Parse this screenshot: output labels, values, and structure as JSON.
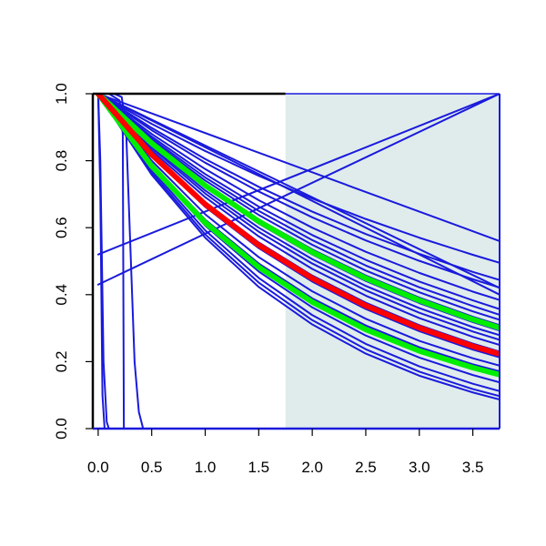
{
  "chart_data": {
    "type": "line",
    "title": "",
    "xlabel": "",
    "ylabel": "",
    "xlim": [
      -0.05,
      3.75
    ],
    "ylim": [
      0.0,
      1.0
    ],
    "x_ticks": [
      0.0,
      0.5,
      1.0,
      1.5,
      2.0,
      2.5,
      3.0,
      3.5
    ],
    "x_tick_labels": [
      "0.0",
      "0.5",
      "1.0",
      "1.5",
      "2.0",
      "2.5",
      "3.0",
      "3.5"
    ],
    "y_ticks": [
      0.0,
      0.2,
      0.4,
      0.6,
      0.8,
      1.0
    ],
    "y_tick_labels": [
      "0.0",
      "0.2",
      "0.4",
      "0.6",
      "0.8",
      "1.0"
    ],
    "grid": false,
    "legend": "none",
    "shaded_region": {
      "x_start": 1.75,
      "x_end": 3.75,
      "color": "#e0ecec"
    },
    "colors": {
      "background_curves": "#1a1adc",
      "central": "#ff0000",
      "bounds": "#00ee00"
    },
    "series": [
      {
        "role": "background",
        "x": [
          0,
          0.02,
          0.04,
          0.06
        ],
        "y": [
          1.0,
          0.7,
          0.1,
          0.0
        ]
      },
      {
        "role": "background",
        "x": [
          0,
          0.02,
          0.05,
          0.08,
          0.1
        ],
        "y": [
          1.0,
          0.8,
          0.2,
          0.02,
          0.0
        ]
      },
      {
        "role": "background",
        "x": [
          0,
          0.15,
          0.22,
          0.26,
          0.3,
          0.34,
          0.38,
          0.42,
          0.45
        ],
        "y": [
          1.0,
          1.0,
          0.99,
          0.9,
          0.55,
          0.2,
          0.05,
          0.0,
          0.0
        ]
      },
      {
        "role": "background",
        "x": [
          0,
          0.1,
          0.2,
          0.23,
          0.24
        ],
        "y": [
          1.0,
          1.0,
          0.98,
          0.88,
          0.0
        ]
      },
      {
        "role": "background",
        "x": [
          0,
          3.75
        ],
        "y": [
          0.52,
          1.0
        ]
      },
      {
        "role": "background",
        "x": [
          0,
          3.75
        ],
        "y": [
          0.43,
          1.0
        ]
      },
      {
        "role": "background",
        "x": [
          0,
          3.75
        ],
        "y": [
          1.0,
          0.56
        ]
      },
      {
        "role": "background",
        "x": [
          0,
          3.75
        ],
        "y": [
          1.0,
          0.42
        ]
      },
      {
        "role": "background",
        "x": [
          0,
          3.75
        ],
        "y": [
          1.0,
          0.4
        ]
      },
      {
        "role": "background",
        "x": [
          0,
          0.5,
          1.0,
          1.5,
          2.0,
          2.5,
          3.0,
          3.5,
          3.75
        ],
        "y": [
          1.0,
          0.91,
          0.829,
          0.755,
          0.687,
          0.626,
          0.57,
          0.519,
          0.495
        ]
      },
      {
        "role": "background",
        "x": [
          0,
          0.5,
          1.0,
          1.5,
          2.0,
          2.5,
          3.0,
          3.5,
          3.75
        ],
        "y": [
          1.0,
          0.898,
          0.805,
          0.722,
          0.648,
          0.581,
          0.522,
          0.468,
          0.444
        ]
      },
      {
        "role": "background",
        "x": [
          0,
          0.5,
          1.0,
          1.5,
          2.0,
          2.5,
          3.0,
          3.5,
          3.75
        ],
        "y": [
          1.0,
          0.891,
          0.794,
          0.708,
          0.631,
          0.562,
          0.501,
          0.446,
          0.421
        ]
      },
      {
        "role": "background",
        "x": [
          0,
          0.5,
          1.0,
          1.5,
          2.0,
          2.5,
          3.0,
          3.5,
          3.75
        ],
        "y": [
          1.0,
          0.88,
          0.775,
          0.682,
          0.6,
          0.528,
          0.465,
          0.409,
          0.384
        ]
      },
      {
        "role": "background",
        "x": [
          0,
          0.5,
          1.0,
          1.5,
          2.0,
          2.5,
          3.0,
          3.5,
          3.75
        ],
        "y": [
          1.0,
          0.872,
          0.76,
          0.663,
          0.578,
          0.504,
          0.439,
          0.383,
          0.357
        ]
      },
      {
        "role": "background",
        "x": [
          0,
          0.5,
          1.0,
          1.5,
          2.0,
          2.5,
          3.0,
          3.5,
          3.75
        ],
        "y": [
          1.0,
          0.866,
          0.75,
          0.65,
          0.563,
          0.487,
          0.422,
          0.366,
          0.34
        ]
      },
      {
        "role": "background",
        "x": [
          0,
          0.5,
          1.0,
          1.5,
          2.0,
          2.5,
          3.0,
          3.5,
          3.75
        ],
        "y": [
          1.0,
          0.861,
          0.741,
          0.638,
          0.549,
          0.472,
          0.407,
          0.35,
          0.325
        ]
      },
      {
        "role": "background",
        "x": [
          0,
          0.5,
          1.0,
          1.5,
          2.0,
          2.5,
          3.0,
          3.5,
          3.75
        ],
        "y": [
          1.0,
          0.855,
          0.731,
          0.625,
          0.535,
          0.457,
          0.391,
          0.334,
          0.309
        ]
      },
      {
        "role": "background",
        "x": [
          0,
          0.5,
          1.0,
          1.5,
          2.0,
          2.5,
          3.0,
          3.5,
          3.75
        ],
        "y": [
          1.0,
          0.849,
          0.721,
          0.612,
          0.52,
          0.441,
          0.375,
          0.318,
          0.293
        ]
      },
      {
        "role": "background",
        "x": [
          0,
          0.5,
          1.0,
          1.5,
          2.0,
          2.5,
          3.0,
          3.5,
          3.75
        ],
        "y": [
          1.0,
          0.843,
          0.711,
          0.6,
          0.506,
          0.426,
          0.36,
          0.303,
          0.279
        ]
      },
      {
        "role": "background",
        "x": [
          0,
          0.5,
          1.0,
          1.5,
          2.0,
          2.5,
          3.0,
          3.5,
          3.75
        ],
        "y": [
          1.0,
          0.838,
          0.702,
          0.588,
          0.493,
          0.413,
          0.346,
          0.29,
          0.265
        ]
      },
      {
        "role": "background",
        "x": [
          0,
          0.5,
          1.0,
          1.5,
          2.0,
          2.5,
          3.0,
          3.5,
          3.75
        ],
        "y": [
          1.0,
          0.831,
          0.691,
          0.574,
          0.477,
          0.397,
          0.33,
          0.274,
          0.25
        ]
      },
      {
        "role": "background",
        "x": [
          0,
          0.5,
          1.0,
          1.5,
          2.0,
          2.5,
          3.0,
          3.5,
          3.75
        ],
        "y": [
          1.0,
          0.822,
          0.676,
          0.556,
          0.457,
          0.376,
          0.309,
          0.254,
          0.23
        ]
      },
      {
        "role": "background",
        "x": [
          0,
          0.5,
          1.0,
          1.5,
          2.0,
          2.5,
          3.0,
          3.5,
          3.75
        ],
        "y": [
          1.0,
          0.814,
          0.662,
          0.539,
          0.439,
          0.357,
          0.291,
          0.236,
          0.213
        ]
      },
      {
        "role": "background",
        "x": [
          0,
          0.5,
          1.0,
          1.5,
          2.0,
          2.5,
          3.0,
          3.5,
          3.75
        ],
        "y": [
          1.0,
          0.8,
          0.64,
          0.512,
          0.41,
          0.328,
          0.262,
          0.21,
          0.188
        ]
      },
      {
        "role": "background",
        "x": [
          0,
          0.5,
          1.0,
          1.5,
          2.0,
          2.5,
          3.0,
          3.5,
          3.75
        ],
        "y": [
          1.0,
          0.79,
          0.624,
          0.493,
          0.389,
          0.308,
          0.243,
          0.192,
          0.171
        ]
      },
      {
        "role": "background",
        "x": [
          0,
          0.5,
          1.0,
          1.5,
          2.0,
          2.5,
          3.0,
          3.5,
          3.75
        ],
        "y": [
          1.0,
          0.78,
          0.606,
          0.469,
          0.362,
          0.278,
          0.212,
          0.16,
          0.138
        ]
      },
      {
        "role": "background",
        "x": [
          0,
          0.5,
          1.0,
          1.5,
          2.0,
          2.5,
          3.0,
          3.5,
          3.75
        ],
        "y": [
          1.0,
          0.772,
          0.592,
          0.45,
          0.339,
          0.253,
          0.186,
          0.134,
          0.112
        ]
      },
      {
        "role": "background",
        "x": [
          0,
          0.5,
          1.0,
          1.5,
          2.0,
          2.5,
          3.0,
          3.5,
          3.75
        ],
        "y": [
          1.0,
          0.765,
          0.58,
          0.436,
          0.324,
          0.237,
          0.17,
          0.118,
          0.097
        ]
      },
      {
        "role": "background",
        "x": [
          0,
          0.5,
          1.0,
          1.5,
          2.0,
          2.5,
          3.0,
          3.5,
          3.75
        ],
        "y": [
          1.0,
          0.758,
          0.57,
          0.423,
          0.311,
          0.224,
          0.158,
          0.108,
          0.087
        ]
      },
      {
        "role": "bound",
        "x": [
          0,
          0.5,
          1.0,
          1.5,
          2.0,
          2.5,
          3.0,
          3.5,
          3.75
        ],
        "y": [
          1.0,
          0.852,
          0.726,
          0.619,
          0.527,
          0.449,
          0.383,
          0.326,
          0.301
        ]
      },
      {
        "role": "bound",
        "x": [
          0,
          0.5,
          1.0,
          1.5,
          2.0,
          2.5,
          3.0,
          3.5,
          3.75
        ],
        "y": [
          1.0,
          0.784,
          0.615,
          0.482,
          0.378,
          0.296,
          0.232,
          0.182,
          0.161
        ]
      },
      {
        "role": "central",
        "x": [
          0,
          0.5,
          1.0,
          1.5,
          2.0,
          2.5,
          3.0,
          3.5,
          3.75
        ],
        "y": [
          1.0,
          0.818,
          0.67,
          0.548,
          0.449,
          0.367,
          0.301,
          0.246,
          0.223
        ]
      }
    ]
  }
}
